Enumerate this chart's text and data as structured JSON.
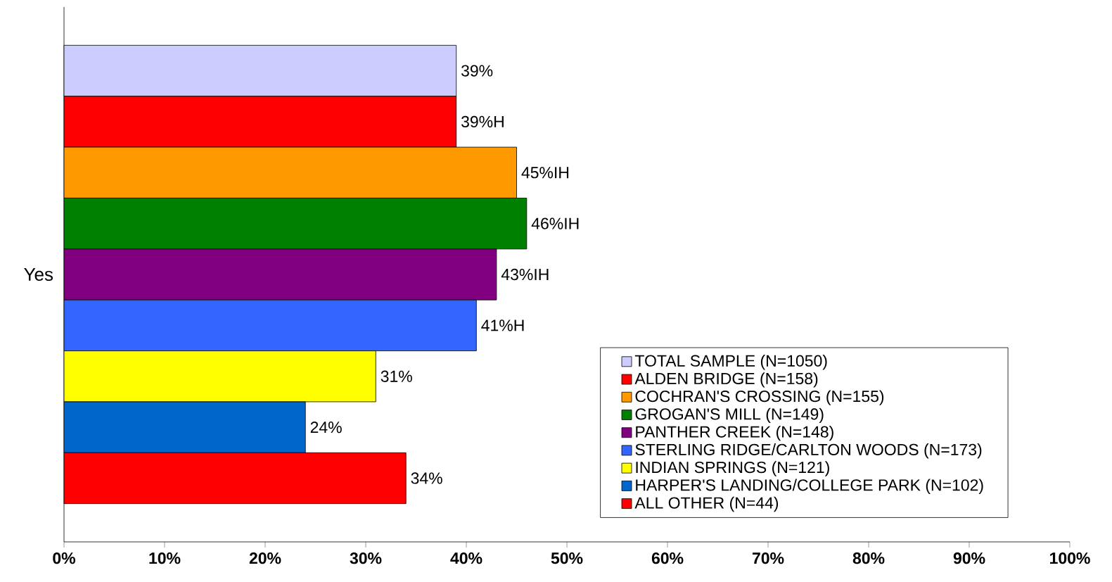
{
  "chart_data": {
    "type": "bar",
    "orientation": "horizontal",
    "categories": [
      "Yes"
    ],
    "series": [
      {
        "name": "TOTAL SAMPLE (N=1050)",
        "color": "#ccccff",
        "values": [
          39
        ],
        "value_labels": [
          "39%"
        ]
      },
      {
        "name": "ALDEN BRIDGE (N=158)",
        "color": "#ff0000",
        "values": [
          39
        ],
        "value_labels": [
          "39%H"
        ]
      },
      {
        "name": "COCHRAN'S CROSSING (N=155)",
        "color": "#ff9900",
        "values": [
          45
        ],
        "value_labels": [
          "45%IH"
        ]
      },
      {
        "name": "GROGAN'S MILL (N=149)",
        "color": "#008000",
        "values": [
          46
        ],
        "value_labels": [
          "46%IH"
        ]
      },
      {
        "name": "PANTHER CREEK (N=148)",
        "color": "#800080",
        "values": [
          43
        ],
        "value_labels": [
          "43%IH"
        ]
      },
      {
        "name": "STERLING RIDGE/CARLTON WOODS (N=173)",
        "color": "#3366ff",
        "values": [
          41
        ],
        "value_labels": [
          "41%H"
        ]
      },
      {
        "name": "INDIAN SPRINGS (N=121)",
        "color": "#ffff00",
        "values": [
          31
        ],
        "value_labels": [
          "31%"
        ]
      },
      {
        "name": "HARPER'S LANDING/COLLEGE PARK (N=102)",
        "color": "#0066cc",
        "values": [
          24
        ],
        "value_labels": [
          "24%"
        ]
      },
      {
        "name": "ALL OTHER (N=44)",
        "color": "#ff0000",
        "values": [
          34
        ],
        "value_labels": [
          "34%"
        ]
      }
    ],
    "xlim": [
      0,
      100
    ],
    "xticks": [
      {
        "value": 0,
        "label": "0%"
      },
      {
        "value": 10,
        "label": "10%"
      },
      {
        "value": 20,
        "label": "20%"
      },
      {
        "value": 30,
        "label": "30%"
      },
      {
        "value": 40,
        "label": "40%"
      },
      {
        "value": 50,
        "label": "50%"
      },
      {
        "value": 60,
        "label": "60%"
      },
      {
        "value": 70,
        "label": "70%"
      },
      {
        "value": 80,
        "label": "80%"
      },
      {
        "value": 90,
        "label": "90%"
      },
      {
        "value": 100,
        "label": "100%"
      }
    ],
    "legend": "bottom right"
  }
}
